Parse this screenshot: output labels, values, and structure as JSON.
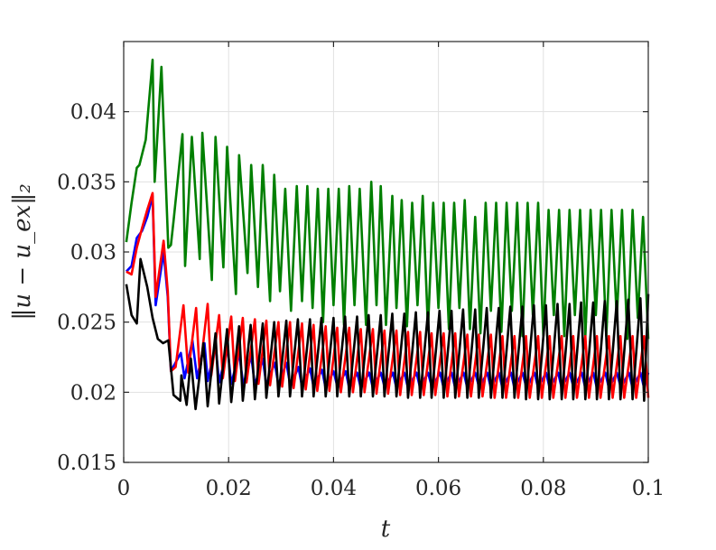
{
  "chart_data": {
    "type": "line",
    "xlabel": "t",
    "ylabel": "‖u − u_ex‖₂",
    "xlim": [
      0,
      0.1
    ],
    "ylim": [
      0.015,
      0.045
    ],
    "grid": true,
    "x_ticks": [
      {
        "value": 0,
        "label": "0"
      },
      {
        "value": 0.02,
        "label": "0.02"
      },
      {
        "value": 0.04,
        "label": "0.04"
      },
      {
        "value": 0.06,
        "label": "0.06"
      },
      {
        "value": 0.08,
        "label": "0.08"
      },
      {
        "value": 0.1,
        "label": "0.1"
      }
    ],
    "y_ticks": [
      {
        "value": 0.015,
        "label": "0.015"
      },
      {
        "value": 0.02,
        "label": "0.02"
      },
      {
        "value": 0.025,
        "label": "0.025"
      },
      {
        "value": 0.03,
        "label": "0.03"
      },
      {
        "value": 0.035,
        "label": "0.035"
      },
      {
        "value": 0.04,
        "label": "0.04"
      }
    ],
    "series": [
      {
        "color": "#007f00",
        "x": [
          0.0005,
          0.0015,
          0.0025,
          0.003,
          0.0042,
          0.0055,
          0.0059,
          0.0072,
          0.0085,
          0.009,
          0.0095,
          0.0112,
          0.0117,
          0.013,
          0.0145,
          0.015,
          0.0168,
          0.0175,
          0.019,
          0.0197,
          0.0214,
          0.022,
          0.0236,
          0.0243,
          0.0256,
          0.0265,
          0.0279,
          0.0287,
          0.0298,
          0.0308,
          0.0319,
          0.033,
          0.034,
          0.035,
          0.036,
          0.037,
          0.038,
          0.039,
          0.04,
          0.041,
          0.042,
          0.043,
          0.044,
          0.045,
          0.0462,
          0.0472,
          0.0482,
          0.049,
          0.05,
          0.0512,
          0.052,
          0.053,
          0.054,
          0.055,
          0.056,
          0.057,
          0.058,
          0.059,
          0.06,
          0.061,
          0.062,
          0.063,
          0.064,
          0.065,
          0.066,
          0.067,
          0.068,
          0.069,
          0.07,
          0.071,
          0.072,
          0.073,
          0.074,
          0.075,
          0.076,
          0.077,
          0.078,
          0.079,
          0.08,
          0.081,
          0.082,
          0.083,
          0.084,
          0.085,
          0.086,
          0.087,
          0.088,
          0.089,
          0.09,
          0.091,
          0.092,
          0.093,
          0.094,
          0.095,
          0.096,
          0.097,
          0.098,
          0.099,
          0.1
        ],
        "y": [
          0.0307,
          0.0335,
          0.036,
          0.0362,
          0.038,
          0.0437,
          0.035,
          0.0432,
          0.0303,
          0.0305,
          0.0322,
          0.0384,
          0.029,
          0.0382,
          0.0295,
          0.0385,
          0.028,
          0.0382,
          0.0289,
          0.0375,
          0.027,
          0.0369,
          0.0285,
          0.0362,
          0.0275,
          0.0362,
          0.0265,
          0.0355,
          0.0272,
          0.0345,
          0.0258,
          0.0347,
          0.0265,
          0.0347,
          0.026,
          0.0345,
          0.025,
          0.0345,
          0.0262,
          0.0345,
          0.0248,
          0.0347,
          0.0262,
          0.0345,
          0.0248,
          0.035,
          0.0262,
          0.0347,
          0.0248,
          0.034,
          0.026,
          0.0337,
          0.0247,
          0.0335,
          0.0262,
          0.034,
          0.0245,
          0.0335,
          0.026,
          0.0335,
          0.0245,
          0.0335,
          0.026,
          0.0337,
          0.0245,
          0.0325,
          0.0242,
          0.0335,
          0.0258,
          0.0335,
          0.0243,
          0.0335,
          0.0258,
          0.0335,
          0.024,
          0.0335,
          0.0255,
          0.0335,
          0.024,
          0.033,
          0.0255,
          0.033,
          0.024,
          0.033,
          0.0255,
          0.033,
          0.024,
          0.033,
          0.0255,
          0.033,
          0.024,
          0.033,
          0.0253,
          0.033,
          0.0238,
          0.033,
          0.0253,
          0.0325,
          0.0238
        ]
      },
      {
        "color": "#0000ff",
        "x": [
          0.0005,
          0.0015,
          0.0025,
          0.0035,
          0.0045,
          0.0055,
          0.0061,
          0.0076,
          0.0084,
          0.009,
          0.0109,
          0.0116,
          0.0131,
          0.014,
          0.0154,
          0.016,
          0.0175,
          0.0182,
          0.0198,
          0.0205,
          0.022,
          0.0228,
          0.0243,
          0.025,
          0.0265,
          0.0272,
          0.0288,
          0.0295,
          0.031,
          0.0318,
          0.0333,
          0.034,
          0.0355,
          0.0362,
          0.0378,
          0.0385,
          0.04,
          0.0408,
          0.0423,
          0.043,
          0.0445,
          0.0452,
          0.0468,
          0.0475,
          0.049,
          0.0498,
          0.0513,
          0.052,
          0.0535,
          0.0542,
          0.0558,
          0.0565,
          0.058,
          0.0588,
          0.0603,
          0.061,
          0.0625,
          0.0632,
          0.0648,
          0.0655,
          0.067,
          0.0678,
          0.0693,
          0.07,
          0.0715,
          0.0722,
          0.0738,
          0.0745,
          0.076,
          0.0768,
          0.0783,
          0.079,
          0.0805,
          0.0812,
          0.0828,
          0.0835,
          0.085,
          0.0858,
          0.0873,
          0.088,
          0.0895,
          0.0902,
          0.0918,
          0.0925,
          0.094,
          0.0948,
          0.0963,
          0.097,
          0.0985,
          0.0992,
          0.1
        ],
        "y": [
          0.0286,
          0.029,
          0.031,
          0.0315,
          0.0325,
          0.034,
          0.0262,
          0.03,
          0.0268,
          0.0215,
          0.0228,
          0.021,
          0.0237,
          0.021,
          0.0235,
          0.0208,
          0.0234,
          0.0207,
          0.0232,
          0.0206,
          0.0228,
          0.0205,
          0.0226,
          0.0205,
          0.0224,
          0.0205,
          0.0221,
          0.0205,
          0.0221,
          0.0204,
          0.0218,
          0.0204,
          0.0217,
          0.0204,
          0.0216,
          0.0203,
          0.0215,
          0.0203,
          0.0215,
          0.0203,
          0.0214,
          0.0203,
          0.0214,
          0.0203,
          0.0214,
          0.0203,
          0.0214,
          0.0203,
          0.0214,
          0.0203,
          0.0214,
          0.0203,
          0.0214,
          0.0203,
          0.0214,
          0.0203,
          0.0214,
          0.0203,
          0.0214,
          0.0203,
          0.0214,
          0.0203,
          0.0214,
          0.0203,
          0.0214,
          0.0203,
          0.0214,
          0.0203,
          0.0214,
          0.0203,
          0.0214,
          0.0203,
          0.0214,
          0.0203,
          0.0214,
          0.0203,
          0.0214,
          0.0203,
          0.0214,
          0.0203,
          0.0214,
          0.0203,
          0.0214,
          0.0203,
          0.0214,
          0.0203,
          0.0214,
          0.0203,
          0.0214,
          0.0203,
          0.0214
        ]
      },
      {
        "color": "#ff0000",
        "x": [
          0.0005,
          0.0015,
          0.0025,
          0.0035,
          0.0045,
          0.0055,
          0.0061,
          0.0076,
          0.0084,
          0.009,
          0.0099,
          0.0114,
          0.0123,
          0.0138,
          0.0145,
          0.016,
          0.0167,
          0.0182,
          0.0189,
          0.0205,
          0.0212,
          0.0227,
          0.0234,
          0.025,
          0.0257,
          0.0272,
          0.0279,
          0.0295,
          0.0302,
          0.0317,
          0.0324,
          0.034,
          0.0347,
          0.0362,
          0.0369,
          0.0385,
          0.0392,
          0.0407,
          0.0414,
          0.043,
          0.0437,
          0.0452,
          0.0459,
          0.0475,
          0.0482,
          0.0497,
          0.0504,
          0.052,
          0.0527,
          0.0542,
          0.0549,
          0.0565,
          0.0572,
          0.0587,
          0.0594,
          0.061,
          0.0617,
          0.0632,
          0.0639,
          0.0655,
          0.0662,
          0.0677,
          0.0684,
          0.07,
          0.0707,
          0.0722,
          0.0729,
          0.0745,
          0.0752,
          0.0767,
          0.0774,
          0.079,
          0.0797,
          0.0812,
          0.0819,
          0.0835,
          0.0842,
          0.0857,
          0.0864,
          0.088,
          0.0887,
          0.0902,
          0.0909,
          0.0925,
          0.0932,
          0.0947,
          0.0954,
          0.097,
          0.0977,
          0.0992,
          0.1
        ],
        "y": [
          0.0286,
          0.0284,
          0.0303,
          0.0317,
          0.033,
          0.0342,
          0.0268,
          0.0308,
          0.0272,
          0.0215,
          0.0218,
          0.0262,
          0.0214,
          0.026,
          0.0213,
          0.0263,
          0.0212,
          0.0255,
          0.021,
          0.0254,
          0.0208,
          0.0253,
          0.0207,
          0.0252,
          0.0206,
          0.0251,
          0.0205,
          0.025,
          0.0204,
          0.025,
          0.0203,
          0.0249,
          0.0202,
          0.0248,
          0.0201,
          0.0247,
          0.0201,
          0.0246,
          0.02,
          0.0246,
          0.02,
          0.0245,
          0.02,
          0.0245,
          0.0199,
          0.0244,
          0.0199,
          0.0244,
          0.0198,
          0.0243,
          0.0198,
          0.0243,
          0.0198,
          0.0242,
          0.0198,
          0.0242,
          0.0197,
          0.0242,
          0.0197,
          0.0241,
          0.0197,
          0.0241,
          0.0197,
          0.0241,
          0.0196,
          0.024,
          0.0196,
          0.024,
          0.0196,
          0.024,
          0.0196,
          0.024,
          0.0196,
          0.024,
          0.0196,
          0.024,
          0.0196,
          0.024,
          0.0196,
          0.024,
          0.0196,
          0.024,
          0.0196,
          0.024,
          0.0196,
          0.024,
          0.0196,
          0.024,
          0.0196,
          0.024,
          0.0196
        ]
      },
      {
        "color": "#000000",
        "x": [
          0.0005,
          0.0015,
          0.0025,
          0.0032,
          0.0045,
          0.0055,
          0.0065,
          0.0075,
          0.0085,
          0.0095,
          0.0108,
          0.011,
          0.012,
          0.0128,
          0.0137,
          0.0152,
          0.016,
          0.0175,
          0.0182,
          0.0197,
          0.0205,
          0.022,
          0.0227,
          0.0242,
          0.025,
          0.0265,
          0.0272,
          0.0287,
          0.0295,
          0.031,
          0.0317,
          0.0332,
          0.034,
          0.0355,
          0.0362,
          0.0377,
          0.0385,
          0.04,
          0.0407,
          0.0422,
          0.043,
          0.0445,
          0.0452,
          0.0467,
          0.0475,
          0.049,
          0.0497,
          0.0512,
          0.052,
          0.0535,
          0.0542,
          0.0557,
          0.0565,
          0.058,
          0.0587,
          0.0602,
          0.061,
          0.0625,
          0.0632,
          0.0647,
          0.0655,
          0.067,
          0.0677,
          0.0692,
          0.07,
          0.0715,
          0.0722,
          0.0737,
          0.0745,
          0.076,
          0.0767,
          0.0782,
          0.079,
          0.0805,
          0.0812,
          0.0827,
          0.0835,
          0.085,
          0.0857,
          0.0872,
          0.088,
          0.0895,
          0.0902,
          0.0917,
          0.0925,
          0.094,
          0.0947,
          0.0962,
          0.097,
          0.0985,
          0.0992,
          0.1
        ],
        "y": [
          0.0277,
          0.0255,
          0.0249,
          0.0295,
          0.0275,
          0.0253,
          0.0238,
          0.0235,
          0.0237,
          0.0198,
          0.0194,
          0.0212,
          0.0191,
          0.0224,
          0.0188,
          0.0235,
          0.019,
          0.0242,
          0.0192,
          0.0245,
          0.0193,
          0.0247,
          0.0194,
          0.0248,
          0.0195,
          0.0249,
          0.0196,
          0.025,
          0.0197,
          0.0251,
          0.0197,
          0.0252,
          0.0197,
          0.0252,
          0.0197,
          0.0253,
          0.0197,
          0.0253,
          0.0197,
          0.0254,
          0.0197,
          0.0254,
          0.0197,
          0.0255,
          0.0197,
          0.0255,
          0.0197,
          0.0256,
          0.0197,
          0.0256,
          0.0196,
          0.0257,
          0.0196,
          0.0257,
          0.0196,
          0.0258,
          0.0196,
          0.0258,
          0.0196,
          0.0259,
          0.0196,
          0.0259,
          0.0196,
          0.026,
          0.0196,
          0.026,
          0.0196,
          0.0261,
          0.0196,
          0.0261,
          0.0195,
          0.0262,
          0.0195,
          0.0262,
          0.0195,
          0.0263,
          0.0195,
          0.0263,
          0.0195,
          0.0264,
          0.0195,
          0.0264,
          0.0195,
          0.0265,
          0.0195,
          0.0265,
          0.0195,
          0.0266,
          0.0195,
          0.0267,
          0.0194,
          0.027
        ]
      }
    ]
  }
}
